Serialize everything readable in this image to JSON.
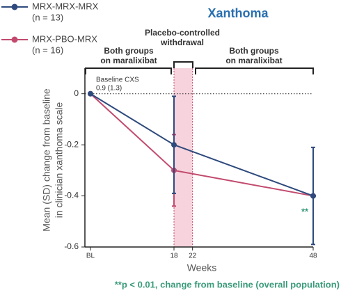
{
  "chart_data": {
    "type": "line",
    "title": "Xanthoma",
    "x": [
      {
        "value": 0,
        "label": "BL"
      },
      18,
      48
    ],
    "xlim": [
      0,
      48
    ],
    "xticks": [
      {
        "value": 0,
        "label": "BL"
      },
      18,
      22,
      48
    ],
    "ylim": [
      -0.6,
      0.1
    ],
    "yticks": [
      0,
      -0.2,
      -0.4,
      -0.6
    ],
    "x_label": "Weeks",
    "y_label": [
      "Mean (SD) change from baseline",
      "in clinician xanthoma scale"
    ],
    "series": [
      {
        "name": "MRX-MRX-MRX",
        "n": "(n = 13)",
        "color": "#2e4a7d",
        "values": [
          0,
          -0.2,
          -0.4
        ],
        "errors": [
          null,
          0.19,
          0.19
        ]
      },
      {
        "name": "MRX-PBO-MRX",
        "n": "(n = 16)",
        "color": "#c24a6e",
        "values": [
          0,
          -0.3,
          -0.4
        ],
        "errors": [
          null,
          0.14,
          null
        ]
      }
    ],
    "shaded_region": [
      18,
      22
    ],
    "shade_color": "#f6d3dd",
    "annotations": {
      "withdrawal": [
        "Placebo-controlled",
        "withdrawal"
      ],
      "left_period": [
        "Both groups",
        "on maralixibat"
      ],
      "right_period": [
        "Both groups",
        "on maralixibat"
      ],
      "baseline": [
        "Baseline CXS",
        "0.9 (1.3)"
      ],
      "significance": "**",
      "footnote": "**p < 0.01, change from baseline (overall population)"
    }
  }
}
